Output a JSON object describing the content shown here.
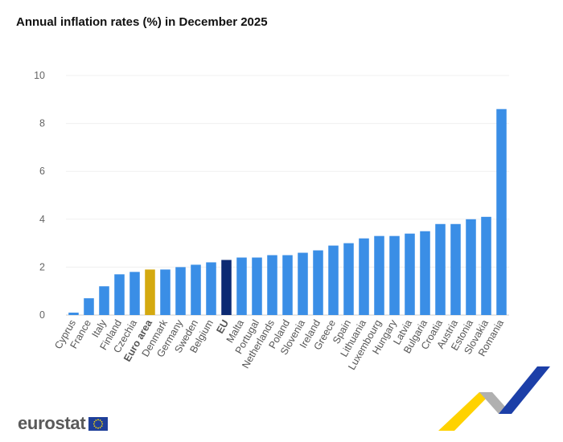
{
  "chart_data": {
    "type": "bar",
    "title": "Annual inflation rates (%) in December 2025",
    "xlabel": "",
    "ylabel": "",
    "ylim": [
      0,
      10
    ],
    "yticks": [
      0,
      2,
      4,
      6,
      8,
      10
    ],
    "grid": true,
    "categories": [
      "Cyprus",
      "France",
      "Italy",
      "Finland",
      "Czechia",
      "Euro area",
      "Denmark",
      "Germany",
      "Sweden",
      "Belgium",
      "EU",
      "Malta",
      "Portugal",
      "Netherlands",
      "Poland",
      "Slovenia",
      "Ireland",
      "Greece",
      "Spain",
      "Lithuania",
      "Luxembourg",
      "Hungary",
      "Latvia",
      "Bulgaria",
      "Croatia",
      "Austria",
      "Estonia",
      "Slovakia",
      "Romania"
    ],
    "values": [
      0.1,
      0.7,
      1.2,
      1.7,
      1.8,
      1.9,
      1.9,
      2.0,
      2.1,
      2.2,
      2.3,
      2.4,
      2.4,
      2.5,
      2.5,
      2.6,
      2.7,
      2.9,
      3.0,
      3.2,
      3.3,
      3.3,
      3.4,
      3.5,
      3.8,
      3.8,
      4.0,
      4.1,
      8.6
    ],
    "highlight": {
      "Euro area": "#d4a90f",
      "EU": "#0c2a73"
    },
    "bold_categories": [
      "Euro area",
      "EU"
    ],
    "bar_color": "#3a8ee6"
  },
  "branding": {
    "logo_text": "eurostat",
    "flag_color": "#1f3f99",
    "star_color": "#ffdd00",
    "swoosh_colors": [
      "#ffd200",
      "#b0b0b0",
      "#1c3fa8"
    ]
  }
}
